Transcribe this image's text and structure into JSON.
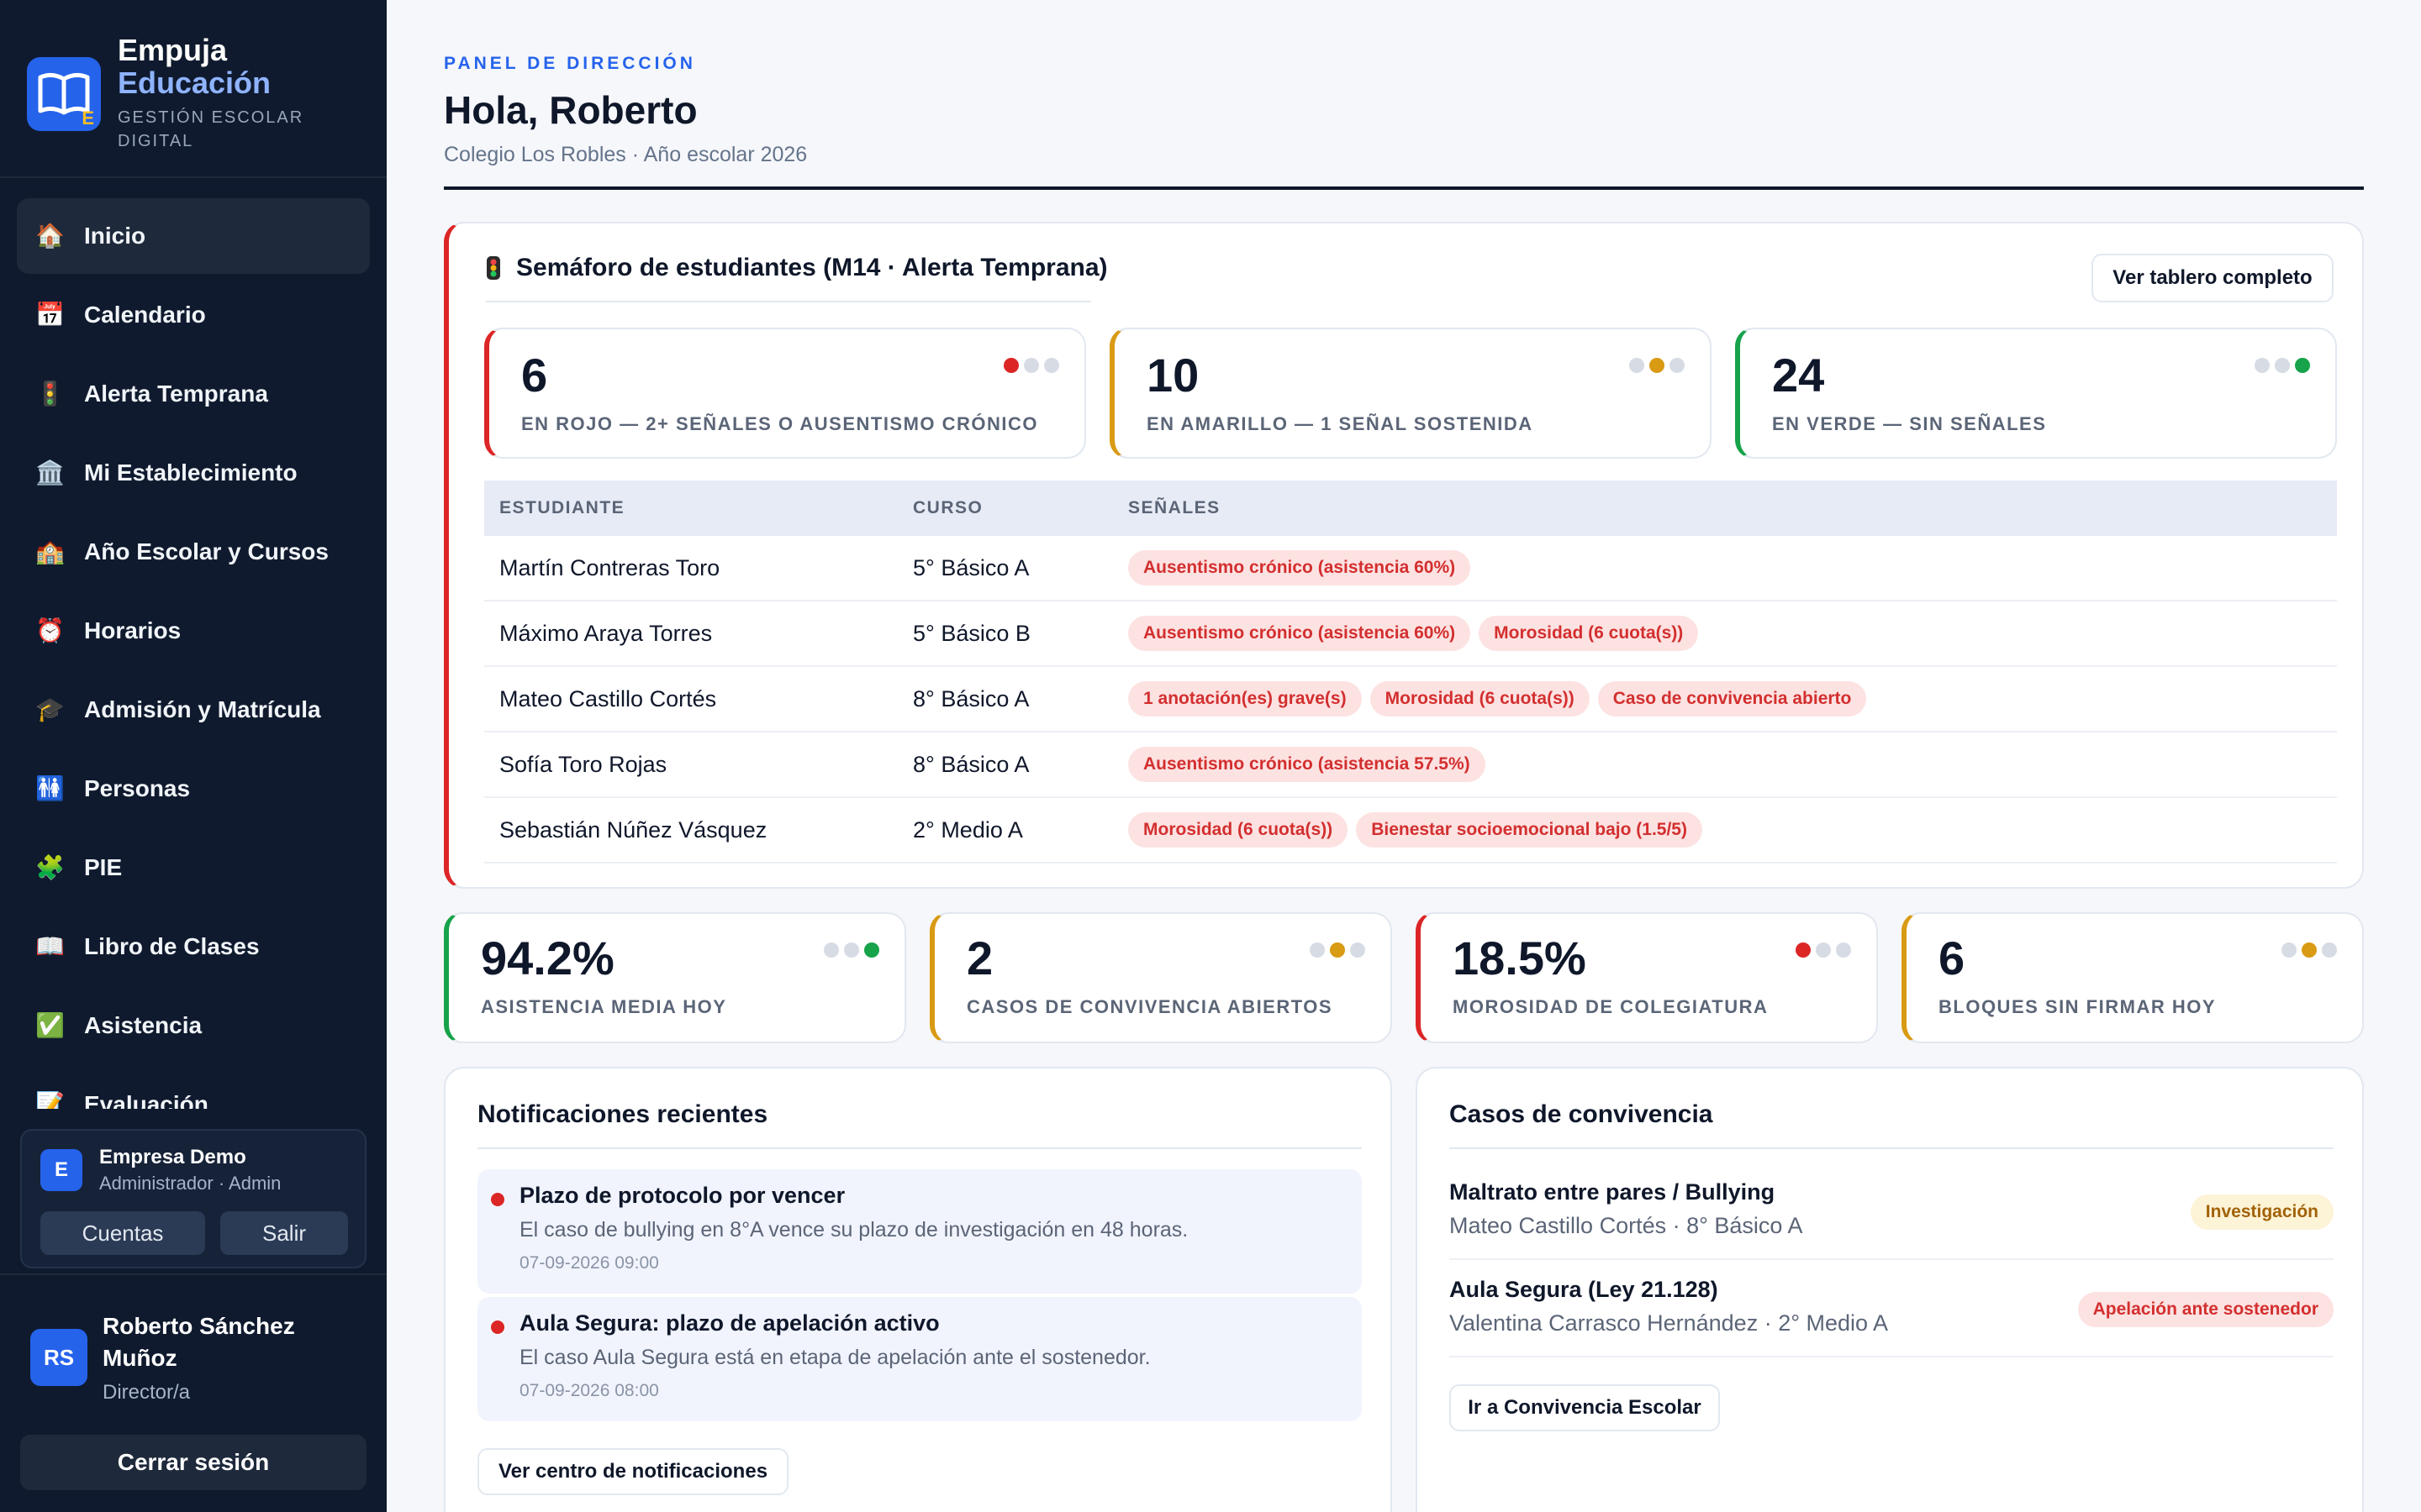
{
  "sidebar": {
    "brand": {
      "name_line1": "Empuja",
      "name_line2": "Educación",
      "tagline": "GESTIÓN ESCOLAR DIGITAL",
      "logo_letter": "E"
    },
    "nav": [
      {
        "icon": "🏠",
        "icon_name": "house-icon",
        "label": "Inicio",
        "active": true
      },
      {
        "icon": "📅",
        "icon_name": "calendar-icon",
        "label": "Calendario"
      },
      {
        "icon": "🚦",
        "icon_name": "traffic-light-icon",
        "label": "Alerta Temprana"
      },
      {
        "icon": "🏛️",
        "icon_name": "institution-icon",
        "label": "Mi Establecimiento"
      },
      {
        "icon": "🏫",
        "icon_name": "school-icon",
        "label": "Año Escolar y Cursos"
      },
      {
        "icon": "⏰",
        "icon_name": "alarm-clock-icon",
        "label": "Horarios"
      },
      {
        "icon": "🎓",
        "icon_name": "graduation-cap-icon",
        "label": "Admisión y Matrícula"
      },
      {
        "icon": "🚻",
        "icon_name": "people-icon",
        "label": "Personas"
      },
      {
        "icon": "🧩",
        "icon_name": "puzzle-icon",
        "label": "PIE"
      },
      {
        "icon": "📖",
        "icon_name": "book-icon",
        "label": "Libro de Clases"
      },
      {
        "icon": "✅",
        "icon_name": "checkmark-icon",
        "label": "Asistencia"
      },
      {
        "icon": "📝",
        "icon_name": "memo-icon",
        "label": "Evaluación"
      }
    ],
    "account": {
      "avatar": "E",
      "name": "Empresa Demo",
      "role": "Administrador · Admin",
      "btn_accounts": "Cuentas",
      "btn_exit": "Salir"
    },
    "user": {
      "initials": "RS",
      "name": "Roberto Sánchez Muñoz",
      "role": "Director/a"
    },
    "logout": "Cerrar sesión"
  },
  "header": {
    "eyebrow": "PANEL DE DIRECCIÓN",
    "greeting": "Hola, Roberto",
    "subtitle": "Colegio Los Robles · Año escolar 2026"
  },
  "semaforo": {
    "title": "Semáforo de estudiantes (M14 · Alerta Temprana)",
    "button": "Ver tablero completo",
    "cards": [
      {
        "value": "6",
        "label": "EN ROJO — 2+ SEÑALES O AUSENTISMO CRÓNICO",
        "status": "red"
      },
      {
        "value": "10",
        "label": "EN AMARILLO — 1 SEÑAL SOSTENIDA",
        "status": "amber"
      },
      {
        "value": "24",
        "label": "EN VERDE — SIN SEÑALES",
        "status": "green"
      }
    ],
    "columns": [
      "ESTUDIANTE",
      "CURSO",
      "SEÑALES"
    ],
    "rows": [
      {
        "student": "Martín Contreras Toro",
        "course": "5° Básico A",
        "signals": [
          "Ausentismo crónico (asistencia 60%)"
        ]
      },
      {
        "student": "Máximo Araya Torres",
        "course": "5° Básico B",
        "signals": [
          "Ausentismo crónico (asistencia 60%)",
          "Morosidad (6 cuota(s))"
        ]
      },
      {
        "student": "Mateo Castillo Cortés",
        "course": "8° Básico A",
        "signals": [
          "1 anotación(es) grave(s)",
          "Morosidad (6 cuota(s))",
          "Caso de convivencia abierto"
        ]
      },
      {
        "student": "Sofía Toro Rojas",
        "course": "8° Básico A",
        "signals": [
          "Ausentismo crónico (asistencia 57.5%)"
        ]
      },
      {
        "student": "Sebastián Núñez Vásquez",
        "course": "2° Medio A",
        "signals": [
          "Morosidad (6 cuota(s))",
          "Bienestar socioemocional bajo (1.5/5)"
        ]
      }
    ]
  },
  "kpis": [
    {
      "value": "94.2%",
      "label": "ASISTENCIA MEDIA HOY",
      "status": "green"
    },
    {
      "value": "2",
      "label": "CASOS DE CONVIVENCIA ABIERTOS",
      "status": "amber"
    },
    {
      "value": "18.5%",
      "label": "MOROSIDAD DE COLEGIATURA",
      "status": "red"
    },
    {
      "value": "6",
      "label": "BLOQUES SIN FIRMAR HOY",
      "status": "amber"
    }
  ],
  "notifications": {
    "title": "Notificaciones recientes",
    "items": [
      {
        "title": "Plazo de protocolo por vencer",
        "body": "El caso de bullying en 8°A vence su plazo de investigación en 48 horas.",
        "date": "07-09-2026 09:00"
      },
      {
        "title": "Aula Segura: plazo de apelación activo",
        "body": "El caso Aula Segura está en etapa de apelación ante el sostenedor.",
        "date": "07-09-2026 08:00"
      }
    ],
    "button": "Ver centro de notificaciones"
  },
  "cases": {
    "title": "Casos de convivencia",
    "items": [
      {
        "title": "Maltrato entre pares / Bullying",
        "subtitle": "Mateo Castillo Cortés · 8° Básico A",
        "badge": "Investigación",
        "badge_color": "amber"
      },
      {
        "title": "Aula Segura (Ley 21.128)",
        "subtitle": "Valentina Carrasco Hernández · 2° Medio A",
        "badge": "Apelación ante sostenedor",
        "badge_color": "red"
      }
    ],
    "button": "Ir a Convivencia Escolar"
  },
  "colors": {
    "accent": "#2563eb",
    "sidebar": "#0f1a2e",
    "red": "#dc2626",
    "amber": "#d99a14",
    "green": "#16a34a"
  }
}
